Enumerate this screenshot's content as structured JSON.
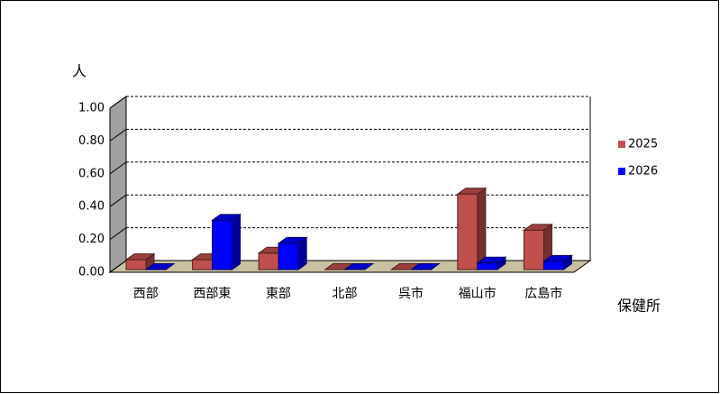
{
  "chart_data": {
    "type": "bar3d",
    "y_label": "人",
    "x_label": "保健所",
    "categories": [
      "西部",
      "西部東",
      "東部",
      "北部",
      "呉市",
      "福山市",
      "広島市"
    ],
    "series": [
      {
        "name": "2025",
        "color": "#c0504d",
        "values": [
          0.06,
          0.06,
          0.1,
          0.0,
          0.0,
          0.46,
          0.24
        ]
      },
      {
        "name": "2026",
        "color": "#0000ff",
        "values": [
          0.0,
          0.3,
          0.16,
          0.0,
          0.0,
          0.04,
          0.05
        ]
      }
    ],
    "ylim": [
      0,
      1
    ],
    "yticks": [
      {
        "value": 0,
        "label": "0.00"
      },
      {
        "value": 0.2,
        "label": "0.20"
      },
      {
        "value": 0.4,
        "label": "0.40"
      },
      {
        "value": 0.6,
        "label": "0.60"
      },
      {
        "value": 0.8,
        "label": "0.80"
      },
      {
        "value": 1,
        "label": "1.00"
      }
    ],
    "grid": true
  }
}
